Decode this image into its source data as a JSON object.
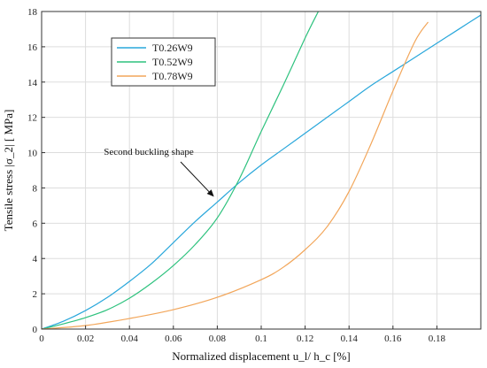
{
  "chart_data": {
    "type": "line",
    "xlabel": "Normalized displacement u_l/ h_c [%]",
    "ylabel": "Tensile stress |σ_2| [ MPa]",
    "xlim": [
      0,
      0.2
    ],
    "ylim": [
      0,
      18
    ],
    "x_ticks": [
      "0",
      "0.02",
      "0.04",
      "0.06",
      "0.08",
      "0.1",
      "0.12",
      "0.14",
      "0.16",
      "0.18"
    ],
    "y_ticks": [
      "0",
      "2",
      "4",
      "6",
      "8",
      "10",
      "12",
      "14",
      "16",
      "18"
    ],
    "grid": true,
    "legend_position": "top-left",
    "annotation": {
      "text": "Second buckling shape",
      "point": [
        0.0785,
        7.5
      ]
    },
    "series": [
      {
        "name": "T0.26W9",
        "color": "#29a7db",
        "x": [
          0,
          0.01,
          0.02,
          0.03,
          0.04,
          0.05,
          0.06,
          0.07,
          0.08,
          0.09,
          0.1,
          0.11,
          0.12,
          0.13,
          0.14,
          0.15,
          0.16,
          0.17,
          0.18,
          0.19,
          0.2
        ],
        "y": [
          0,
          0.45,
          1.05,
          1.8,
          2.7,
          3.7,
          4.9,
          6.1,
          7.2,
          8.3,
          9.3,
          10.2,
          11.1,
          12.0,
          12.9,
          13.8,
          14.6,
          15.4,
          16.2,
          17.0,
          17.8
        ]
      },
      {
        "name": "T0.52W9",
        "color": "#2ec27e",
        "x": [
          0,
          0.01,
          0.02,
          0.03,
          0.04,
          0.05,
          0.06,
          0.07,
          0.08,
          0.09,
          0.1,
          0.11,
          0.12,
          0.126
        ],
        "y": [
          0,
          0.3,
          0.65,
          1.1,
          1.75,
          2.6,
          3.6,
          4.8,
          6.3,
          8.5,
          11.2,
          13.8,
          16.5,
          18.0
        ]
      },
      {
        "name": "T0.78W9",
        "color": "#f2a65a",
        "x": [
          0,
          0.02,
          0.04,
          0.06,
          0.08,
          0.1,
          0.11,
          0.12,
          0.13,
          0.14,
          0.15,
          0.16,
          0.17,
          0.176
        ],
        "y": [
          0,
          0.2,
          0.6,
          1.1,
          1.8,
          2.8,
          3.5,
          4.5,
          5.8,
          7.8,
          10.5,
          13.5,
          16.3,
          17.4
        ]
      }
    ]
  }
}
